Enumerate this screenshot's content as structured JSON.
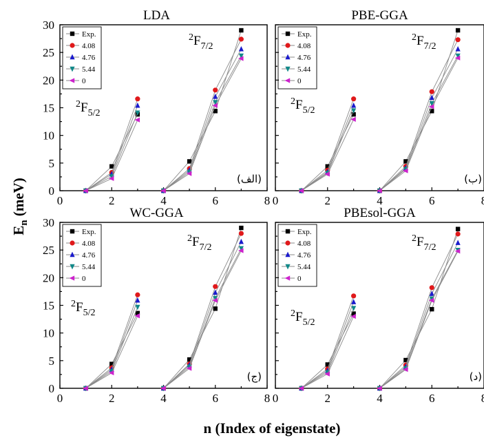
{
  "figure": {
    "xlabel": "n (Index of eigenstate)",
    "ylabel_main": "E",
    "ylabel_sub": "n",
    "ylabel_unit": " (meV)"
  },
  "legend_labels": [
    "Exp.",
    "4.08",
    "4.76",
    "5.44",
    "0"
  ],
  "terms": [
    {
      "main": "2",
      "letter": "F",
      "sub": "5/2"
    },
    {
      "main": "2",
      "letter": "F",
      "sub": "7/2"
    }
  ],
  "chart_data": [
    {
      "type": "line",
      "title": "LDA",
      "panel_label": "(الف)",
      "xlim": [
        0,
        8
      ],
      "ylim": [
        0,
        30
      ],
      "xticks": [
        "0",
        "2",
        "4",
        "6",
        "8"
      ],
      "yticks": [
        "0",
        "5",
        "10",
        "15",
        "20",
        "25",
        "30"
      ],
      "series": [
        {
          "name": "Exp.",
          "color": "#000000",
          "marker": "square",
          "x": [
            1,
            2,
            3,
            4,
            5,
            6,
            7
          ],
          "y": [
            0,
            4.4,
            13.8,
            0,
            5.3,
            14.4,
            29.0
          ]
        },
        {
          "name": "4.08",
          "color": "#e0191b",
          "marker": "circle",
          "x": [
            1,
            2,
            3,
            4,
            5,
            6,
            7
          ],
          "y": [
            0,
            3.3,
            16.6,
            0,
            4.0,
            18.2,
            27.4
          ]
        },
        {
          "name": "4.76",
          "color": "#1a1acc",
          "marker": "triangle-up",
          "x": [
            1,
            2,
            3,
            4,
            5,
            6,
            7
          ],
          "y": [
            0,
            3.0,
            15.4,
            0,
            3.7,
            17.0,
            25.6
          ]
        },
        {
          "name": "5.44",
          "color": "#118888",
          "marker": "triangle-down",
          "x": [
            1,
            2,
            3,
            4,
            5,
            6,
            7
          ],
          "y": [
            0,
            2.6,
            14.1,
            0,
            3.4,
            16.0,
            24.4
          ]
        },
        {
          "name": "0",
          "color": "#cc22cc",
          "marker": "triangle-left",
          "x": [
            1,
            2,
            3,
            4,
            5,
            6,
            7
          ],
          "y": [
            0,
            2.2,
            12.8,
            0,
            3.1,
            15.4,
            23.9
          ]
        }
      ]
    },
    {
      "type": "line",
      "title": "PBE-GGA",
      "panel_label": "(ب)",
      "xlim": [
        0,
        8
      ],
      "ylim": [
        0,
        30
      ],
      "xticks": [
        "0",
        "2",
        "4",
        "6",
        "8"
      ],
      "yticks": [
        "0",
        "5",
        "10",
        "15",
        "20",
        "25",
        "30"
      ],
      "series": [
        {
          "name": "Exp.",
          "color": "#000000",
          "marker": "square",
          "x": [
            1,
            2,
            3,
            4,
            5,
            6,
            7
          ],
          "y": [
            0,
            4.4,
            13.8,
            0,
            5.3,
            14.4,
            29.0
          ]
        },
        {
          "name": "4.08",
          "color": "#e0191b",
          "marker": "circle",
          "x": [
            1,
            2,
            3,
            4,
            5,
            6,
            7
          ],
          "y": [
            0,
            3.7,
            16.6,
            0,
            4.4,
            17.9,
            27.3
          ]
        },
        {
          "name": "4.76",
          "color": "#1a1acc",
          "marker": "triangle-up",
          "x": [
            1,
            2,
            3,
            4,
            5,
            6,
            7
          ],
          "y": [
            0,
            3.4,
            15.4,
            0,
            4.1,
            16.8,
            25.6
          ]
        },
        {
          "name": "5.44",
          "color": "#118888",
          "marker": "triangle-down",
          "x": [
            1,
            2,
            3,
            4,
            5,
            6,
            7
          ],
          "y": [
            0,
            3.2,
            14.5,
            0,
            3.9,
            15.8,
            24.4
          ]
        },
        {
          "name": "0",
          "color": "#cc22cc",
          "marker": "triangle-left",
          "x": [
            1,
            2,
            3,
            4,
            5,
            6,
            7
          ],
          "y": [
            0,
            3.0,
            12.9,
            0,
            3.6,
            15.2,
            24.0
          ]
        }
      ]
    },
    {
      "type": "line",
      "title": "WC-GGA",
      "panel_label": "(ج)",
      "xlim": [
        0,
        8
      ],
      "ylim": [
        0,
        30
      ],
      "xticks": [
        "0",
        "2",
        "4",
        "6",
        "8"
      ],
      "yticks": [
        "0",
        "5",
        "10",
        "15",
        "20",
        "25",
        "30"
      ],
      "series": [
        {
          "name": "Exp.",
          "color": "#000000",
          "marker": "square",
          "x": [
            1,
            2,
            3,
            4,
            5,
            6,
            7
          ],
          "y": [
            0,
            4.4,
            13.6,
            0,
            5.2,
            14.4,
            29.0
          ]
        },
        {
          "name": "4.08",
          "color": "#e0191b",
          "marker": "circle",
          "x": [
            1,
            2,
            3,
            4,
            5,
            6,
            7
          ],
          "y": [
            0,
            3.7,
            16.9,
            0,
            4.4,
            18.4,
            28.0
          ]
        },
        {
          "name": "4.76",
          "color": "#1a1acc",
          "marker": "triangle-up",
          "x": [
            1,
            2,
            3,
            4,
            5,
            6,
            7
          ],
          "y": [
            0,
            3.4,
            15.9,
            0,
            4.2,
            17.3,
            26.5
          ]
        },
        {
          "name": "5.44",
          "color": "#118888",
          "marker": "triangle-down",
          "x": [
            1,
            2,
            3,
            4,
            5,
            6,
            7
          ],
          "y": [
            0,
            3.1,
            14.7,
            0,
            3.9,
            16.3,
            25.3
          ]
        },
        {
          "name": "0",
          "color": "#cc22cc",
          "marker": "triangle-left",
          "x": [
            1,
            2,
            3,
            4,
            5,
            6,
            7
          ],
          "y": [
            0,
            2.8,
            13.1,
            0,
            3.6,
            15.9,
            24.9
          ]
        }
      ]
    },
    {
      "type": "line",
      "title": "PBEsol-GGA",
      "panel_label": "(د)",
      "xlim": [
        0,
        8
      ],
      "ylim": [
        0,
        30
      ],
      "xticks": [
        "0",
        "2",
        "4",
        "6",
        "8"
      ],
      "yticks": [
        "0",
        "5",
        "10",
        "15",
        "20",
        "25",
        "30"
      ],
      "series": [
        {
          "name": "Exp.",
          "color": "#000000",
          "marker": "square",
          "x": [
            1,
            2,
            3,
            4,
            5,
            6,
            7
          ],
          "y": [
            0,
            4.3,
            13.5,
            0,
            5.1,
            14.3,
            28.8
          ]
        },
        {
          "name": "4.08",
          "color": "#e0191b",
          "marker": "circle",
          "x": [
            1,
            2,
            3,
            4,
            5,
            6,
            7
          ],
          "y": [
            0,
            3.5,
            16.7,
            0,
            4.2,
            18.2,
            27.9
          ]
        },
        {
          "name": "4.76",
          "color": "#1a1acc",
          "marker": "triangle-up",
          "x": [
            1,
            2,
            3,
            4,
            5,
            6,
            7
          ],
          "y": [
            0,
            3.2,
            15.6,
            0,
            3.9,
            17.1,
            26.3
          ]
        },
        {
          "name": "5.44",
          "color": "#118888",
          "marker": "triangle-down",
          "x": [
            1,
            2,
            3,
            4,
            5,
            6,
            7
          ],
          "y": [
            0,
            2.9,
            14.5,
            0,
            3.6,
            16.2,
            25.0
          ]
        },
        {
          "name": "0",
          "color": "#cc22cc",
          "marker": "triangle-left",
          "x": [
            1,
            2,
            3,
            4,
            5,
            6,
            7
          ],
          "y": [
            0,
            2.6,
            13.0,
            0,
            3.4,
            15.9,
            24.8
          ]
        }
      ]
    }
  ]
}
